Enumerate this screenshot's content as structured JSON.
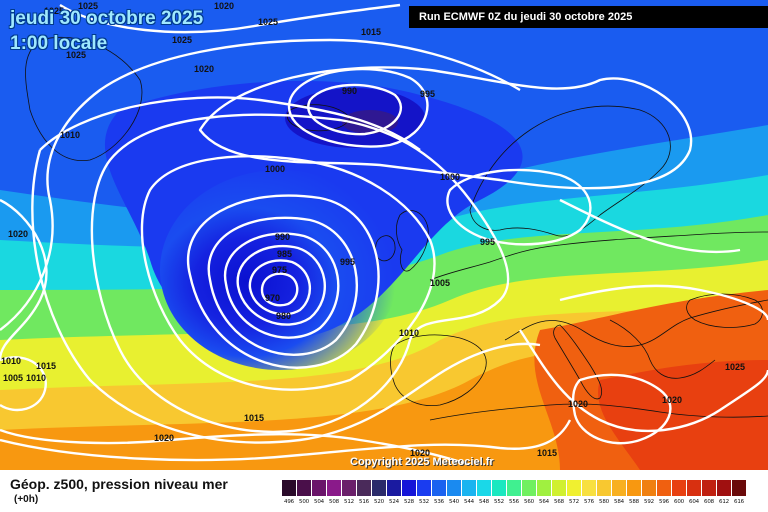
{
  "header": {
    "date_label": "jeudi 30 octobre 2025",
    "time_label": "1:00 locale",
    "run_label": "Run ECMWF 0Z du jeudi 30 octobre 2025"
  },
  "copyright": "Copyright 2025 Meteociel.fr",
  "legend": {
    "title": "Géop. z500, pression niveau mer",
    "subtitle": "(+0h)",
    "levels": [
      {
        "value": "496",
        "color": "#2a0a2a"
      },
      {
        "value": "500",
        "color": "#4a0f4a"
      },
      {
        "value": "504",
        "color": "#6a146a"
      },
      {
        "value": "508",
        "color": "#8a1a8a"
      },
      {
        "value": "512",
        "color": "#6a1f6a"
      },
      {
        "value": "516",
        "color": "#4a2a5a"
      },
      {
        "value": "520",
        "color": "#2a2a6a"
      },
      {
        "value": "524",
        "color": "#1a1aa0"
      },
      {
        "value": "528",
        "color": "#1414d8"
      },
      {
        "value": "532",
        "color": "#1a3cf0"
      },
      {
        "value": "536",
        "color": "#1a62f0"
      },
      {
        "value": "540",
        "color": "#1a8af0"
      },
      {
        "value": "544",
        "color": "#1ab4f0"
      },
      {
        "value": "548",
        "color": "#1ad8e8"
      },
      {
        "value": "552",
        "color": "#1ae8c0"
      },
      {
        "value": "556",
        "color": "#40f090"
      },
      {
        "value": "560",
        "color": "#70f060"
      },
      {
        "value": "564",
        "color": "#a0f040"
      },
      {
        "value": "568",
        "color": "#d0f030"
      },
      {
        "value": "572",
        "color": "#f0f030"
      },
      {
        "value": "576",
        "color": "#f8e040"
      },
      {
        "value": "580",
        "color": "#f8c830"
      },
      {
        "value": "584",
        "color": "#f8b020"
      },
      {
        "value": "588",
        "color": "#f89810"
      },
      {
        "value": "592",
        "color": "#f08010"
      },
      {
        "value": "596",
        "color": "#f06010"
      },
      {
        "value": "600",
        "color": "#e84010"
      },
      {
        "value": "604",
        "color": "#d83010"
      },
      {
        "value": "608",
        "color": "#c02010"
      },
      {
        "value": "612",
        "color": "#a01010"
      },
      {
        "value": "616",
        "color": "#6a0a0a"
      }
    ]
  },
  "map": {
    "isobar_labels": [
      {
        "text": "1025"
      },
      {
        "text": "1025"
      },
      {
        "text": "1020"
      },
      {
        "text": "1025"
      },
      {
        "text": "1025"
      },
      {
        "text": "1025"
      },
      {
        "text": "1020"
      },
      {
        "text": "1015"
      },
      {
        "text": "990"
      },
      {
        "text": "995"
      },
      {
        "text": "1010"
      },
      {
        "text": "1000"
      },
      {
        "text": "1000"
      },
      {
        "text": "1020"
      },
      {
        "text": "990"
      },
      {
        "text": "985"
      },
      {
        "text": "975"
      },
      {
        "text": "970"
      },
      {
        "text": "980"
      },
      {
        "text": "995"
      },
      {
        "text": "995"
      },
      {
        "text": "1005"
      },
      {
        "text": "1010"
      },
      {
        "text": "1010"
      },
      {
        "text": "1015"
      },
      {
        "text": "1005"
      },
      {
        "text": "1010"
      },
      {
        "text": "1015"
      },
      {
        "text": "1020"
      },
      {
        "text": "1020"
      },
      {
        "text": "1020"
      },
      {
        "text": "1015"
      },
      {
        "text": "1020"
      },
      {
        "text": "1025"
      }
    ]
  }
}
